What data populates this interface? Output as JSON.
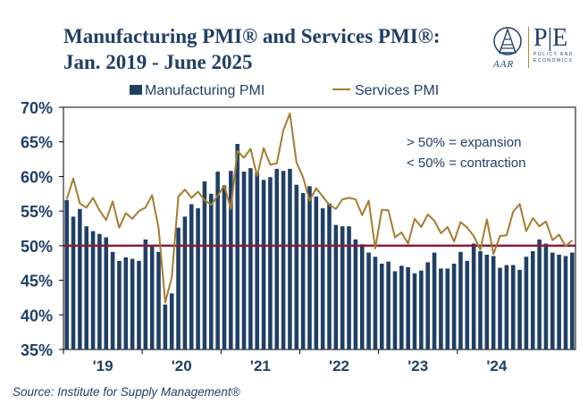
{
  "header": {
    "title": "Manufacturing PMI® and Services PMI®: Jan. 2019 - June 2025",
    "logo_left_text": "AAR",
    "logo_right_text": "P|E",
    "logo_right_subtext": "POLICY AND ECONOMICS"
  },
  "source": "Source: Institute for Supply Management®",
  "colors": {
    "bars": "#1f3f66",
    "services_line": "#a67c2e",
    "threshold_line": "#8b1a3a",
    "text": "#1f3f66"
  },
  "chart_data": {
    "type": "bar",
    "x_start": "2019-01",
    "x_end": "2025-06",
    "xtick_labels": [
      "'19",
      "'20",
      "'21",
      "'22",
      "'23",
      "'24"
    ],
    "xtick_years": [
      2019,
      2020,
      2021,
      2022,
      2023,
      2024
    ],
    "ylim": [
      35,
      70
    ],
    "yticks": [
      35,
      40,
      45,
      50,
      55,
      60,
      65,
      70
    ],
    "ytick_labels": [
      "35%",
      "40%",
      "45%",
      "50%",
      "55%",
      "60%",
      "65%",
      "70%"
    ],
    "threshold": 50,
    "annotations": [
      "> 50% = expansion",
      "< 50% = contraction"
    ],
    "legend_position": "top",
    "grid": false,
    "series": [
      {
        "name": "Manufacturing PMI",
        "type": "bar",
        "values": [
          56.6,
          54.2,
          55.3,
          52.8,
          52.1,
          51.7,
          51.2,
          49.1,
          47.8,
          48.3,
          48.1,
          47.8,
          50.9,
          50.1,
          49.1,
          41.5,
          43.1,
          52.6,
          54.2,
          56.0,
          55.4,
          59.3,
          57.5,
          60.7,
          58.7,
          60.8,
          64.7,
          60.7,
          61.2,
          60.6,
          59.5,
          59.9,
          61.1,
          60.8,
          61.1,
          58.8,
          57.6,
          58.6,
          57.1,
          55.4,
          56.1,
          53.0,
          52.8,
          52.8,
          50.9,
          50.2,
          49.0,
          48.4,
          47.4,
          47.7,
          46.3,
          47.1,
          46.9,
          46.0,
          46.4,
          47.6,
          49.0,
          46.7,
          46.7,
          47.4,
          49.1,
          47.8,
          50.3,
          49.2,
          48.7,
          48.5,
          46.8,
          47.2,
          47.2,
          46.5,
          48.4,
          49.2,
          50.9,
          50.3,
          49.0,
          48.7,
          48.5,
          49.0
        ]
      },
      {
        "name": "Services PMI",
        "type": "line",
        "values": [
          56.7,
          59.7,
          56.1,
          55.5,
          56.9,
          55.1,
          53.7,
          56.4,
          52.6,
          54.7,
          53.9,
          55.0,
          55.5,
          57.3,
          52.5,
          41.8,
          45.4,
          57.1,
          58.1,
          56.9,
          57.8,
          56.6,
          55.9,
          57.2,
          58.7,
          55.3,
          63.7,
          62.7,
          64.0,
          60.1,
          64.1,
          61.7,
          61.9,
          66.7,
          69.1,
          62.0,
          59.9,
          56.5,
          58.3,
          57.1,
          55.9,
          55.3,
          56.7,
          56.9,
          56.7,
          54.4,
          56.5,
          49.6,
          55.2,
          55.1,
          51.2,
          51.9,
          50.3,
          53.9,
          52.7,
          54.5,
          53.6,
          51.8,
          52.7,
          50.6,
          53.4,
          52.6,
          51.4,
          49.4,
          53.8,
          48.8,
          51.4,
          51.5,
          54.9,
          56.0,
          52.1,
          54.0,
          52.8,
          53.5,
          50.8,
          51.6,
          49.9,
          50.8
        ]
      }
    ]
  }
}
